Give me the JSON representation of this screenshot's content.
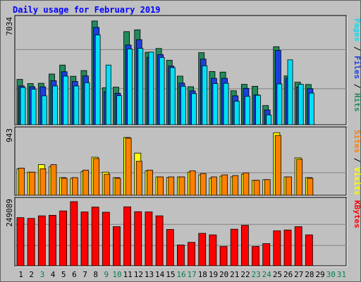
{
  "chart_data": {
    "type": "bar",
    "title": "Daily usage for February 2019",
    "categories": [
      "1",
      "2",
      "3",
      "4",
      "5",
      "6",
      "7",
      "8",
      "9",
      "10",
      "11",
      "12",
      "13",
      "14",
      "15",
      "16",
      "17",
      "18",
      "19",
      "20",
      "21",
      "22",
      "23",
      "24",
      "25",
      "26",
      "27",
      "28",
      "29",
      "30",
      "31"
    ],
    "weekend_days": [
      "3",
      "9",
      "10",
      "16",
      "17",
      "23",
      "24",
      "30",
      "31"
    ],
    "panels": [
      {
        "id": "pages-files-hits",
        "max_label": "7034",
        "ylim": [
          0,
          7034
        ],
        "series": [
          {
            "name": "Hits",
            "color": "#228b5b",
            "values": [
              3040,
              2760,
              2780,
              3400,
              4000,
              3250,
              3630,
              6950,
              2480,
              2520,
              6240,
              6360,
              4860,
              5110,
              4320,
              3260,
              2550,
              4830,
              3570,
              3530,
              2280,
              2710,
              2580,
              1290,
              5230,
              3270,
              2850,
              2700,
              0,
              0,
              0
            ]
          },
          {
            "name": "Files",
            "color": "#1c3fe0",
            "values": [
              2600,
              2550,
              2540,
              2950,
              3550,
              2900,
              3270,
              6520,
              2220,
              2110,
              5340,
              5700,
              4520,
              4700,
              3930,
              2790,
              2270,
              4400,
              3110,
              3110,
              1940,
              2440,
              2000,
              990,
              4980,
              3120,
              2530,
              2420,
              0,
              0,
              0
            ]
          },
          {
            "name": "Pages",
            "color": "#00e0f8",
            "values": [
              2500,
              2380,
              1940,
              2600,
              3260,
              2600,
              2820,
              6020,
              4000,
              1950,
              5080,
              5120,
              4870,
              4510,
              3830,
              2580,
              2090,
              3950,
              2760,
              2780,
              1580,
              1900,
              1980,
              660,
              2740,
              4350,
              2710,
              2120,
              0,
              0,
              0
            ]
          }
        ]
      },
      {
        "id": "visits-sites",
        "max_label": "943",
        "ylim": [
          0,
          943
        ],
        "series": [
          {
            "name": "Visits",
            "color": "#ffff00",
            "values": [
              390,
              340,
              450,
              420,
              260,
              250,
              350,
              560,
              340,
              260,
              850,
              620,
              360,
              270,
              260,
              270,
              340,
              300,
              250,
              280,
              270,
              310,
              220,
              230,
              920,
              270,
              550,
              260,
              0,
              0,
              0
            ]
          },
          {
            "name": "Sites",
            "color": "#ff8000",
            "values": [
              400,
              340,
              390,
              450,
              250,
              260,
              370,
              540,
              310,
              250,
              840,
              500,
              370,
              270,
              270,
              270,
              360,
              320,
              270,
              300,
              290,
              330,
              220,
              230,
              880,
              270,
              530,
              250,
              0,
              0,
              0
            ]
          }
        ]
      },
      {
        "id": "kbytes",
        "max_label": "249089",
        "ylim": [
          0,
          249089
        ],
        "series": [
          {
            "name": "KBytes",
            "color": "#ff0000",
            "values": [
              187000,
              184000,
              194000,
              196000,
              213000,
              249089,
              209000,
              228000,
              208000,
              152000,
              229000,
              210000,
              209000,
              194000,
              141000,
              81000,
              91000,
              126000,
              120000,
              75000,
              142000,
              157000,
              75000,
              86000,
              136000,
              139000,
              152000,
              120000,
              0,
              0,
              0
            ]
          }
        ]
      }
    ],
    "right_labels": {
      "panel1": [
        {
          "text": "Pages",
          "color": "#00e0f8"
        },
        {
          "text": " / ",
          "color": "#000000"
        },
        {
          "text": "Files",
          "color": "#1c3fe0"
        },
        {
          "text": " / ",
          "color": "#000000"
        },
        {
          "text": "Hits",
          "color": "#228b5b"
        }
      ],
      "panel2": [
        {
          "text": "Sites",
          "color": "#ff8000"
        },
        {
          "text": " / ",
          "color": "#000000"
        },
        {
          "text": "Visits",
          "color": "#ffff00"
        }
      ],
      "panel3": [
        {
          "text": "KBytes",
          "color": "#ff0000"
        }
      ]
    },
    "colors": {
      "background": "#c0c0c0",
      "title": "#0000ff",
      "weekday_label": "#000000",
      "weekend_label": "#00804a",
      "grid": "#808080"
    }
  }
}
